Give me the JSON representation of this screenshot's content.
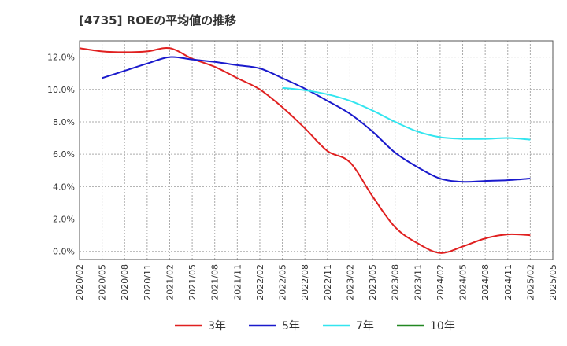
{
  "chart_data": {
    "type": "line",
    "title": "[4735]  ROEの平均値の推移",
    "x": [
      "2020/02",
      "2020/05",
      "2020/08",
      "2020/11",
      "2021/02",
      "2021/05",
      "2021/08",
      "2021/11",
      "2022/02",
      "2022/05",
      "2022/08",
      "2022/11",
      "2023/02",
      "2023/05",
      "2023/08",
      "2023/11",
      "2024/02",
      "2024/05",
      "2024/08",
      "2024/11",
      "2025/02",
      "2025/05"
    ],
    "yticks": [
      "0.0%",
      "2.0%",
      "4.0%",
      "6.0%",
      "8.0%",
      "10.0%",
      "12.0%"
    ],
    "ylim": [
      -0.5,
      13.0
    ],
    "grid": true,
    "legend_position": "bottom",
    "series": [
      {
        "name": "3年",
        "color": "#e02020",
        "values": [
          12.55,
          12.35,
          12.3,
          12.35,
          12.55,
          11.9,
          11.4,
          10.7,
          10.0,
          8.9,
          7.6,
          6.2,
          5.5,
          3.4,
          1.5,
          0.5,
          -0.1,
          0.3,
          0.8,
          1.05,
          1.0,
          null
        ]
      },
      {
        "name": "5年",
        "color": "#1a1acc",
        "values": [
          null,
          10.7,
          11.15,
          11.6,
          12.0,
          11.85,
          11.7,
          11.5,
          11.3,
          10.7,
          10.05,
          9.3,
          8.5,
          7.4,
          6.1,
          5.2,
          4.5,
          4.3,
          4.35,
          4.4,
          4.5,
          null
        ]
      },
      {
        "name": "7年",
        "color": "#33e5ef",
        "values": [
          null,
          null,
          null,
          null,
          null,
          null,
          null,
          null,
          null,
          10.1,
          9.95,
          9.7,
          9.3,
          8.7,
          8.0,
          7.4,
          7.05,
          6.95,
          6.95,
          7.0,
          6.9,
          null
        ]
      },
      {
        "name": "10年",
        "color": "#228822",
        "values": [
          null,
          null,
          null,
          null,
          null,
          null,
          null,
          null,
          null,
          null,
          null,
          null,
          null,
          null,
          null,
          null,
          null,
          null,
          null,
          null,
          null,
          null
        ]
      }
    ]
  }
}
